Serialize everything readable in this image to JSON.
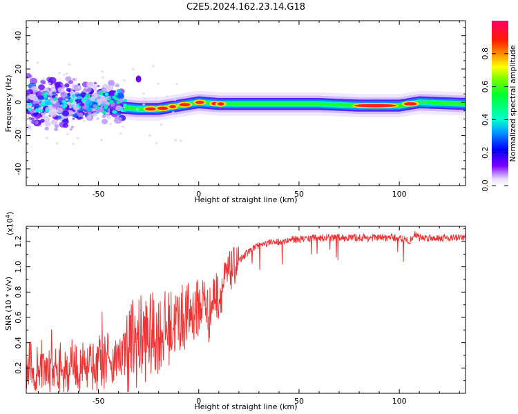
{
  "title": "C2E5.2024.162.23.14.G18",
  "colors": {
    "snr_line": "#ee3333",
    "frame": "#000000"
  },
  "chart_data": [
    {
      "type": "heatmap",
      "xlabel": "Height of straight line (km)",
      "ylabel": "Frequency (Hz)",
      "xlim": [
        -86,
        133
      ],
      "ylim": [
        -50,
        49
      ],
      "xticks": [
        -50,
        0,
        50,
        100
      ],
      "yticks": [
        -40,
        -20,
        0,
        20,
        40
      ],
      "colorbar": {
        "label": "Normalized spectral amplitude",
        "range": [
          0,
          1
        ],
        "ticks": [
          "0.0",
          "0.2",
          "0.4",
          "0.6",
          "0.8"
        ],
        "tick_values": [
          0.0,
          0.2,
          0.4,
          0.6,
          0.8
        ],
        "colormap": "gist_rainbow"
      },
      "ridge": {
        "x": [
          -86,
          -60,
          -45,
          -40,
          -30,
          -20,
          -10,
          0,
          10,
          20,
          40,
          60,
          80,
          100,
          110,
          133
        ],
        "freq_hz": [
          0,
          0,
          -1,
          -3,
          -4,
          -4,
          -2,
          0,
          -1,
          -1,
          -1,
          -1,
          -2,
          -2,
          0,
          -1
        ]
      }
    },
    {
      "type": "line",
      "xlabel": "Height of straight line (km)",
      "ylabel": "SNR (10 * v/v)",
      "yscale_label": "(x10^4)",
      "xlim": [
        -86,
        133
      ],
      "ylim": [
        0,
        1.32
      ],
      "xticks": [
        -50,
        0,
        50,
        100
      ],
      "yticks": [
        "0.2",
        "0.4",
        "0.6",
        "0.8",
        "1.0",
        "1.2"
      ],
      "ytick_values": [
        0.2,
        0.4,
        0.6,
        0.8,
        1.0,
        1.2
      ],
      "series": [
        {
          "x": [
            -86,
            -80,
            -75,
            -70,
            -65,
            -60,
            -55,
            -50,
            -45,
            -40,
            -35,
            -30,
            -25,
            -20,
            -15,
            -10,
            -5,
            0,
            3,
            5,
            8,
            10,
            12,
            15,
            20,
            25,
            30,
            40,
            50,
            60,
            70,
            80,
            90,
            100,
            105,
            108,
            110,
            120,
            133
          ],
          "values": [
            0.18,
            0.2,
            0.2,
            0.22,
            0.19,
            0.2,
            0.21,
            0.23,
            0.25,
            0.28,
            0.38,
            0.42,
            0.45,
            0.48,
            0.52,
            0.58,
            0.62,
            0.68,
            0.75,
            0.6,
            0.8,
            0.75,
            0.85,
            0.95,
            1.05,
            1.12,
            1.17,
            1.2,
            1.22,
            1.23,
            1.23,
            1.23,
            1.23,
            1.23,
            1.2,
            1.26,
            1.23,
            1.23,
            1.23
          ]
        }
      ]
    }
  ]
}
